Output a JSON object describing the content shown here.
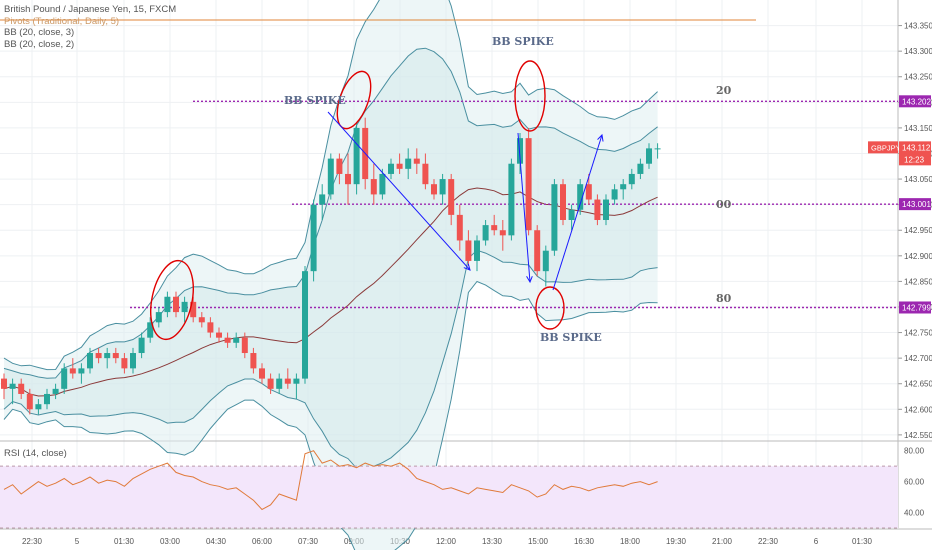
{
  "legend": {
    "symbol": "British Pound / Japanese Yen, 15, FXCM",
    "pivots": "Pivots (Traditional, Daily, 5)",
    "bb3": "BB (20, close, 3)",
    "bb2": "BB (20, close, 2)"
  },
  "rsi_label": "RSI (14, close)",
  "annotations": {
    "bb_spike_left": "BB SPIKE",
    "bb_spike_top": "BB SPIKE",
    "bb_spike_bottom": "BB SPIKE",
    "level_20": "20",
    "level_00": "00",
    "level_80": "80"
  },
  "price_tags": {
    "upper": "143.202",
    "mid": "143.001",
    "lower": "142.799",
    "symbol": "GBPJPY",
    "last": "143.112",
    "countdown": "12:23"
  },
  "colors": {
    "up": "#26a69a",
    "down": "#ef5350",
    "band": "#4a8fa0",
    "basis": "#8b3a3a",
    "level": "#9c27b0",
    "pivot": "#e0863a",
    "arrow": "#1a1aff",
    "circle": "#e00000",
    "rsi": "#e07a3a"
  },
  "chart_data": [
    {
      "type": "candlestick",
      "title": "British Pound / Japanese Yen, 15, FXCM",
      "ylim": [
        142.54,
        143.4
      ],
      "y_ticks": [
        "143.350",
        "143.300",
        "143.250",
        "143.200",
        "143.150",
        "143.100",
        "143.050",
        "143.000",
        "142.950",
        "142.900",
        "142.850",
        "142.800",
        "142.750",
        "142.700",
        "142.650",
        "142.600",
        "142.550"
      ],
      "x_ticks": [
        "22:30",
        "5",
        "01:30",
        "03:00",
        "04:30",
        "06:00",
        "07:30",
        "09:00",
        "10:30",
        "12:00",
        "13:30",
        "15:00",
        "16:30",
        "18:00",
        "19:30",
        "21:00",
        "22:30",
        "6",
        "01:30"
      ],
      "horizontal_levels": [
        143.202,
        143.001,
        142.799
      ],
      "candles": [
        [
          142.66,
          142.67,
          142.62,
          142.64
        ],
        [
          142.64,
          142.66,
          142.61,
          142.65
        ],
        [
          142.65,
          142.66,
          142.62,
          142.63
        ],
        [
          142.63,
          142.64,
          142.59,
          142.6
        ],
        [
          142.6,
          142.62,
          142.59,
          142.61
        ],
        [
          142.61,
          142.64,
          142.6,
          142.63
        ],
        [
          142.63,
          142.65,
          142.62,
          142.64
        ],
        [
          142.64,
          142.69,
          142.63,
          142.68
        ],
        [
          142.68,
          142.7,
          142.66,
          142.67
        ],
        [
          142.67,
          142.69,
          142.65,
          142.68
        ],
        [
          142.68,
          142.72,
          142.67,
          142.71
        ],
        [
          142.71,
          142.72,
          142.69,
          142.7
        ],
        [
          142.7,
          142.72,
          142.68,
          142.71
        ],
        [
          142.71,
          142.72,
          142.69,
          142.7
        ],
        [
          142.7,
          142.71,
          142.67,
          142.68
        ],
        [
          142.68,
          142.72,
          142.67,
          142.71
        ],
        [
          142.71,
          142.75,
          142.7,
          142.74
        ],
        [
          142.74,
          142.78,
          142.73,
          142.77
        ],
        [
          142.77,
          142.8,
          142.76,
          142.79
        ],
        [
          142.79,
          142.83,
          142.78,
          142.82
        ],
        [
          142.82,
          142.83,
          142.78,
          142.79
        ],
        [
          142.79,
          142.82,
          142.77,
          142.81
        ],
        [
          142.81,
          142.82,
          142.77,
          142.78
        ],
        [
          142.78,
          142.79,
          142.76,
          142.77
        ],
        [
          142.77,
          142.78,
          142.74,
          142.75
        ],
        [
          142.75,
          142.76,
          142.73,
          142.74
        ],
        [
          142.74,
          142.75,
          142.72,
          142.73
        ],
        [
          142.73,
          142.75,
          142.72,
          142.74
        ],
        [
          142.74,
          142.75,
          142.7,
          142.71
        ],
        [
          142.71,
          142.72,
          142.67,
          142.68
        ],
        [
          142.68,
          142.69,
          142.65,
          142.66
        ],
        [
          142.66,
          142.67,
          142.63,
          142.64
        ],
        [
          142.64,
          142.67,
          142.63,
          142.66
        ],
        [
          142.66,
          142.68,
          142.64,
          142.65
        ],
        [
          142.65,
          142.67,
          142.62,
          142.66
        ],
        [
          142.66,
          142.88,
          142.65,
          142.87
        ],
        [
          142.87,
          143.01,
          142.85,
          143.0
        ],
        [
          143.0,
          143.04,
          142.97,
          143.02
        ],
        [
          143.02,
          143.1,
          143.01,
          143.09
        ],
        [
          143.09,
          143.1,
          143.04,
          143.06
        ],
        [
          143.06,
          143.1,
          143.0,
          143.04
        ],
        [
          143.04,
          143.16,
          143.02,
          143.15
        ],
        [
          143.15,
          143.17,
          143.03,
          143.05
        ],
        [
          143.05,
          143.08,
          143.0,
          143.02
        ],
        [
          143.02,
          143.07,
          143.01,
          143.06
        ],
        [
          143.06,
          143.09,
          143.05,
          143.08
        ],
        [
          143.08,
          143.1,
          143.06,
          143.07
        ],
        [
          143.07,
          143.11,
          143.05,
          143.09
        ],
        [
          143.09,
          143.11,
          143.06,
          143.08
        ],
        [
          143.08,
          143.1,
          143.03,
          143.04
        ],
        [
          143.04,
          143.05,
          143.01,
          143.02
        ],
        [
          143.02,
          143.06,
          143.0,
          143.05
        ],
        [
          143.05,
          143.06,
          142.96,
          142.98
        ],
        [
          142.98,
          143.0,
          142.91,
          142.93
        ],
        [
          142.93,
          142.95,
          142.88,
          142.89
        ],
        [
          142.89,
          142.94,
          142.87,
          142.93
        ],
        [
          142.93,
          142.97,
          142.92,
          142.96
        ],
        [
          142.96,
          142.98,
          142.94,
          142.95
        ],
        [
          142.95,
          142.97,
          142.91,
          142.94
        ],
        [
          142.94,
          143.09,
          142.93,
          143.08
        ],
        [
          143.08,
          143.14,
          143.06,
          143.13
        ],
        [
          143.13,
          143.15,
          142.94,
          142.95
        ],
        [
          142.95,
          142.96,
          142.86,
          142.87
        ],
        [
          142.87,
          142.92,
          142.84,
          142.91
        ],
        [
          142.91,
          143.05,
          142.9,
          143.04
        ],
        [
          143.04,
          143.05,
          142.96,
          142.97
        ],
        [
          142.97,
          143.0,
          142.95,
          142.99
        ],
        [
          142.99,
          143.05,
          142.98,
          143.04
        ],
        [
          143.04,
          143.06,
          143.0,
          143.01
        ],
        [
          143.01,
          143.02,
          142.96,
          142.97
        ],
        [
          142.97,
          143.02,
          142.96,
          143.01
        ],
        [
          143.01,
          143.04,
          143.0,
          143.03
        ],
        [
          143.03,
          143.05,
          143.01,
          143.04
        ],
        [
          143.04,
          143.07,
          143.03,
          143.06
        ],
        [
          143.06,
          143.09,
          143.05,
          143.08
        ],
        [
          143.08,
          143.12,
          143.07,
          143.11
        ],
        [
          143.11,
          143.12,
          143.09,
          143.11
        ]
      ]
    },
    {
      "type": "line",
      "title": "RSI (14, close)",
      "ylim": [
        30,
        85
      ],
      "y_ticks": [
        "80.00",
        "60.00",
        "40.00"
      ],
      "bands": [
        70,
        30
      ],
      "values": [
        55,
        58,
        52,
        56,
        60,
        57,
        59,
        62,
        58,
        60,
        63,
        59,
        61,
        60,
        57,
        62,
        65,
        68,
        70,
        72,
        66,
        64,
        63,
        60,
        58,
        57,
        55,
        56,
        52,
        48,
        42,
        45,
        52,
        50,
        48,
        78,
        80,
        72,
        74,
        70,
        71,
        69,
        72,
        70,
        71,
        70,
        72,
        68,
        62,
        60,
        58,
        55,
        56,
        54,
        52,
        56,
        55,
        54,
        53,
        58,
        56,
        54,
        50,
        52,
        58,
        55,
        57,
        56,
        54,
        56,
        57,
        58,
        57,
        59,
        60,
        58,
        60
      ]
    }
  ]
}
